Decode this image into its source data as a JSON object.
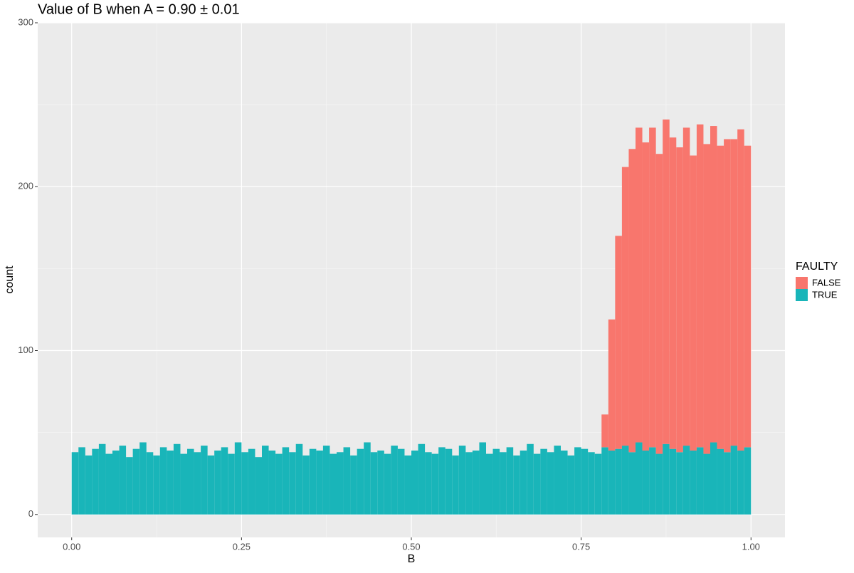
{
  "chart_data": {
    "type": "histogram",
    "title": "Value of B when A = 0.90 ± 0.01",
    "x_label": "B",
    "y_label": "count",
    "legend_title": "FAULTY",
    "bins": [
      0,
      0.01,
      0.02,
      0.03,
      0.04,
      0.05,
      0.06,
      0.07,
      0.08,
      0.09,
      0.1,
      0.11,
      0.12,
      0.13,
      0.14,
      0.15,
      0.16,
      0.17,
      0.18,
      0.19,
      0.2,
      0.21,
      0.22,
      0.23,
      0.24,
      0.25,
      0.26,
      0.27,
      0.28,
      0.29,
      0.3,
      0.31,
      0.32,
      0.33,
      0.34,
      0.35,
      0.36,
      0.37,
      0.38,
      0.39,
      0.4,
      0.41,
      0.42,
      0.43,
      0.44,
      0.45,
      0.46,
      0.47,
      0.48,
      0.49,
      0.5,
      0.51,
      0.52,
      0.53,
      0.54,
      0.55,
      0.56,
      0.57,
      0.58,
      0.59,
      0.6,
      0.61,
      0.62,
      0.63,
      0.64,
      0.65,
      0.66,
      0.67,
      0.68,
      0.69,
      0.7,
      0.71,
      0.72,
      0.73,
      0.74,
      0.75,
      0.76,
      0.77,
      0.78,
      0.79,
      0.8,
      0.81,
      0.82,
      0.83,
      0.84,
      0.85,
      0.86,
      0.87,
      0.88,
      0.89,
      0.9,
      0.91,
      0.92,
      0.93,
      0.94,
      0.95,
      0.96,
      0.97,
      0.98,
      0.99,
      1
    ],
    "series": [
      {
        "name": "FALSE",
        "color": "#f8766d",
        "values": [
          0,
          0,
          0,
          0,
          0,
          0,
          0,
          0,
          0,
          0,
          0,
          0,
          0,
          0,
          0,
          0,
          0,
          0,
          0,
          0,
          0,
          0,
          0,
          0,
          0,
          0,
          0,
          0,
          0,
          0,
          0,
          0,
          0,
          0,
          0,
          0,
          0,
          0,
          0,
          0,
          0,
          0,
          0,
          0,
          0,
          0,
          0,
          0,
          0,
          0,
          0,
          0,
          0,
          0,
          0,
          0,
          0,
          0,
          0,
          0,
          0,
          0,
          0,
          0,
          0,
          0,
          0,
          0,
          0,
          0,
          0,
          0,
          0,
          0,
          0,
          0,
          0,
          0,
          20,
          80,
          130,
          170,
          185,
          192,
          188,
          195,
          183,
          198,
          190,
          186,
          194,
          180,
          197,
          189,
          193,
          185,
          191,
          187,
          196,
          184
        ]
      },
      {
        "name": "TRUE",
        "color": "#19b5b9",
        "values": [
          38,
          41,
          36,
          40,
          43,
          37,
          39,
          42,
          35,
          40,
          44,
          38,
          36,
          41,
          39,
          43,
          37,
          40,
          38,
          42,
          36,
          39,
          41,
          37,
          44,
          38,
          40,
          35,
          42,
          39,
          37,
          41,
          38,
          43,
          36,
          40,
          39,
          42,
          37,
          38,
          41,
          36,
          40,
          44,
          38,
          39,
          37,
          42,
          40,
          36,
          39,
          43,
          38,
          37,
          41,
          40,
          36,
          42,
          38,
          39,
          44,
          37,
          40,
          38,
          41,
          36,
          39,
          43,
          37,
          40,
          38,
          42,
          39,
          36,
          41,
          40,
          38,
          37,
          41,
          39,
          40,
          42,
          38,
          44,
          39,
          41,
          37,
          43,
          40,
          38,
          42,
          39,
          41,
          37,
          44,
          40,
          38,
          42,
          39,
          41
        ]
      }
    ],
    "xlim": [
      -0.05,
      1.05
    ],
    "xticks": [
      {
        "value": 0,
        "label": "0.00"
      },
      {
        "value": 0.25,
        "label": "0.25"
      },
      {
        "value": 0.5,
        "label": "0.50"
      },
      {
        "value": 0.75,
        "label": "0.75"
      },
      {
        "value": 1,
        "label": "1.00"
      }
    ],
    "ylim": [
      -14,
      300
    ],
    "yticks": [
      0,
      100,
      200,
      300
    ],
    "grid": true,
    "stacked": true
  }
}
